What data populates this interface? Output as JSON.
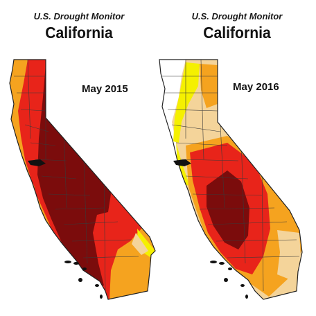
{
  "maps": [
    {
      "subtitle": "U.S. Drought Monitor",
      "title": "California",
      "date": "May 2015"
    },
    {
      "subtitle": "U.S. Drought Monitor",
      "title": "California",
      "date": "May 2016"
    }
  ],
  "colors": {
    "none": "#ffffff",
    "d0_abnormally_dry": "#f5f000",
    "d1_moderate": "#f4d49a",
    "d2_severe": "#f5a31f",
    "d3_extreme": "#e8241a",
    "d4_exceptional": "#7b0c0c",
    "county_lines": "#3a3a3a",
    "outline": "#222222"
  }
}
